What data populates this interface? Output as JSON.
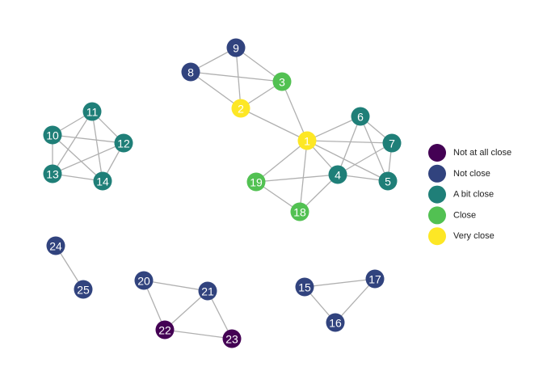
{
  "colors": {
    "Not at all close": "#440154",
    "Not close": "#31437e",
    "A bit close": "#1f7f78",
    "Close": "#52c152",
    "Very close": "#fde725",
    "edge": "#b0b0b0"
  },
  "legend": {
    "items": [
      "Not at all close",
      "Not close",
      "A bit close",
      "Close",
      "Very close"
    ]
  },
  "nodes": [
    {
      "id": "1",
      "group": "Very close"
    },
    {
      "id": "2",
      "group": "Very close"
    },
    {
      "id": "3",
      "group": "Close"
    },
    {
      "id": "4",
      "group": "A bit close"
    },
    {
      "id": "5",
      "group": "A bit close"
    },
    {
      "id": "6",
      "group": "A bit close"
    },
    {
      "id": "7",
      "group": "A bit close"
    },
    {
      "id": "8",
      "group": "Not close"
    },
    {
      "id": "9",
      "group": "Not close"
    },
    {
      "id": "10",
      "group": "A bit close"
    },
    {
      "id": "11",
      "group": "A bit close"
    },
    {
      "id": "12",
      "group": "A bit close"
    },
    {
      "id": "13",
      "group": "A bit close"
    },
    {
      "id": "14",
      "group": "A bit close"
    },
    {
      "id": "15",
      "group": "Not close"
    },
    {
      "id": "16",
      "group": "Not close"
    },
    {
      "id": "17",
      "group": "Not close"
    },
    {
      "id": "18",
      "group": "Close"
    },
    {
      "id": "19",
      "group": "Close"
    },
    {
      "id": "20",
      "group": "Not close"
    },
    {
      "id": "21",
      "group": "Not close"
    },
    {
      "id": "22",
      "group": "Not at all close"
    },
    {
      "id": "23",
      "group": "Not at all close"
    },
    {
      "id": "24",
      "group": "Not close"
    },
    {
      "id": "25",
      "group": "Not close"
    }
  ],
  "edges": [
    [
      "8",
      "9"
    ],
    [
      "8",
      "3"
    ],
    [
      "8",
      "2"
    ],
    [
      "9",
      "2"
    ],
    [
      "9",
      "3"
    ],
    [
      "3",
      "2"
    ],
    [
      "3",
      "1"
    ],
    [
      "2",
      "1"
    ],
    [
      "1",
      "6"
    ],
    [
      "1",
      "7"
    ],
    [
      "1",
      "4"
    ],
    [
      "1",
      "5"
    ],
    [
      "1",
      "19"
    ],
    [
      "1",
      "18"
    ],
    [
      "6",
      "4"
    ],
    [
      "6",
      "7"
    ],
    [
      "6",
      "5"
    ],
    [
      "7",
      "4"
    ],
    [
      "7",
      "5"
    ],
    [
      "4",
      "5"
    ],
    [
      "4",
      "19"
    ],
    [
      "4",
      "18"
    ],
    [
      "19",
      "18"
    ],
    [
      "10",
      "11"
    ],
    [
      "10",
      "12"
    ],
    [
      "10",
      "13"
    ],
    [
      "10",
      "14"
    ],
    [
      "11",
      "12"
    ],
    [
      "11",
      "13"
    ],
    [
      "11",
      "14"
    ],
    [
      "12",
      "13"
    ],
    [
      "12",
      "14"
    ],
    [
      "13",
      "14"
    ],
    [
      "24",
      "25"
    ],
    [
      "20",
      "21"
    ],
    [
      "20",
      "22"
    ],
    [
      "21",
      "22"
    ],
    [
      "21",
      "23"
    ],
    [
      "22",
      "23"
    ],
    [
      "15",
      "16"
    ],
    [
      "15",
      "17"
    ],
    [
      "16",
      "17"
    ]
  ]
}
